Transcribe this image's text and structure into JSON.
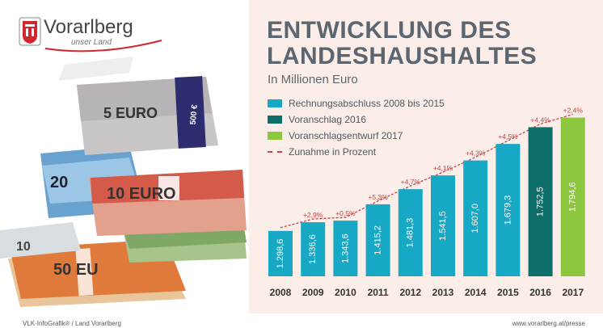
{
  "brand": {
    "name": "Vorarlberg",
    "tagline": "unser Land"
  },
  "title_line1": "ENTWICKLUNG DES",
  "title_line2": "LANDESHAUSHALTES",
  "subtitle": "In Millionen Euro",
  "legend": [
    {
      "label": "Rechnungsabschluss 2008 bis 2015",
      "color": "#16a8c4",
      "type": "box"
    },
    {
      "label": "Voranschlag 2016",
      "color": "#0d6e6a",
      "type": "box"
    },
    {
      "label": "Voranschlagsentwurf 2017",
      "color": "#8dc63f",
      "type": "box"
    },
    {
      "label": "Zunahme in Prozent",
      "color": "#c0464b",
      "type": "dash"
    }
  ],
  "money_labels": {
    "note5": "5 EURO",
    "note5_value": "500 €",
    "note20": "20",
    "note10": "10 EURO",
    "note50": "50 EU",
    "note10b": "10"
  },
  "footer": {
    "left": "VLK-InfoGrafik® / Land Vorarlberg",
    "right": "www.vorarlberg.at/presse"
  },
  "chart_data": {
    "type": "bar",
    "categories": [
      "2008",
      "2009",
      "2010",
      "2011",
      "2012",
      "2013",
      "2014",
      "2015",
      "2016",
      "2017"
    ],
    "values": [
      1298.6,
      1336.6,
      1343.6,
      1415.2,
      1481.3,
      1541.5,
      1607.0,
      1679.3,
      1752.5,
      1794.6
    ],
    "value_labels": [
      "1.298,6",
      "1.336,6",
      "1.343,6",
      "1.415,2",
      "1.481,3",
      "1.541,5",
      "1.607,0",
      "1.679,3",
      "1.752,5",
      "1.794,6"
    ],
    "change_labels": [
      "",
      "+2,9%",
      "+0,5%",
      "+5,3%",
      "+4,7%",
      "+4,1%",
      "+4,3%",
      "+4,5%",
      "+4,4%",
      "+2,4%"
    ],
    "bar_colors": [
      "#16a8c4",
      "#16a8c4",
      "#16a8c4",
      "#16a8c4",
      "#16a8c4",
      "#16a8c4",
      "#16a8c4",
      "#16a8c4",
      "#0d6e6a",
      "#8dc63f"
    ],
    "trend_color": "#c0464b",
    "ylim": [
      1100,
      1800
    ]
  }
}
